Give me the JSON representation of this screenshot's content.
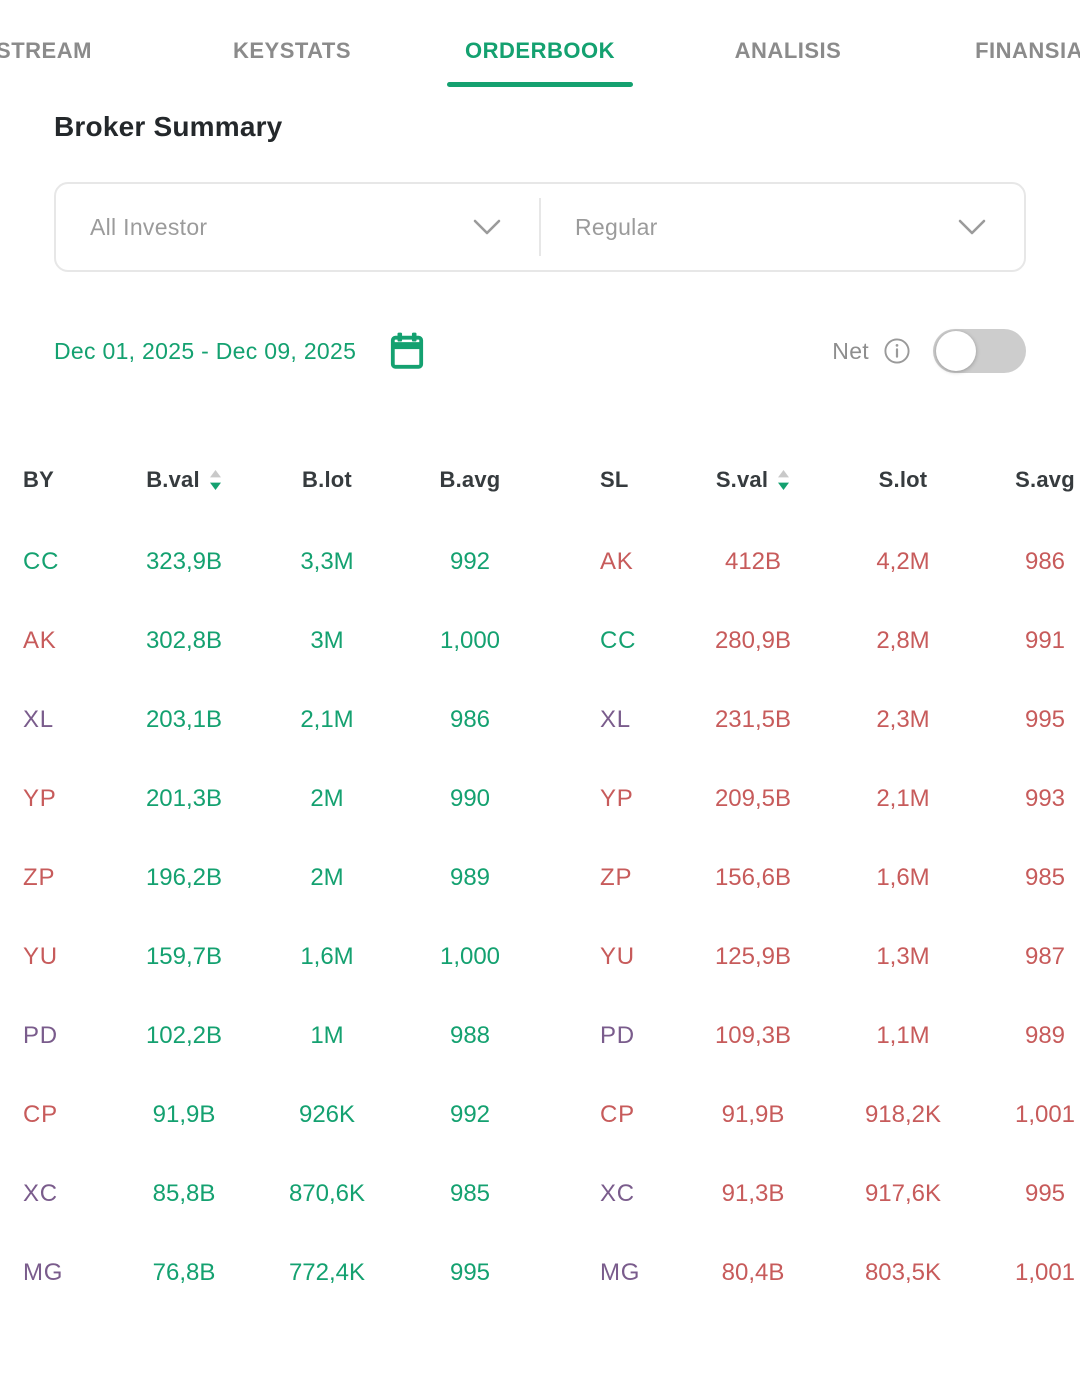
{
  "tab_bar": {
    "tabs": [
      {
        "label": "STREAM",
        "active": false
      },
      {
        "label": "KEYSTATS",
        "active": false
      },
      {
        "label": "ORDERBOOK",
        "active": true
      },
      {
        "label": "ANALISIS",
        "active": false
      },
      {
        "label": "FINANSIAL",
        "active": false
      }
    ]
  },
  "header": {
    "title": "Broker Summary"
  },
  "filters": {
    "investor_label": "All Investor",
    "board_label": "Regular"
  },
  "date_picker": {
    "range": "Dec 01, 2025 - Dec 09, 2025"
  },
  "net": {
    "label": "Net",
    "toggle_state": "off"
  },
  "table": {
    "columns": [
      {
        "label": "BY",
        "sortable": false
      },
      {
        "label": "B.val",
        "sortable": true
      },
      {
        "label": "B.lot",
        "sortable": false
      },
      {
        "label": "B.avg",
        "sortable": false
      },
      {
        "label": "SL",
        "sortable": false
      },
      {
        "label": "S.val",
        "sortable": true
      },
      {
        "label": "S.lot",
        "sortable": false
      },
      {
        "label": "S.avg",
        "sortable": false
      }
    ],
    "rows": [
      {
        "buy": {
          "code": "CC",
          "color": "green",
          "val": "323,9B",
          "lot": "3,3M",
          "avg": "992"
        },
        "sell": {
          "code": "AK",
          "color": "red",
          "val": "412B",
          "lot": "4,2M",
          "avg": "986"
        }
      },
      {
        "buy": {
          "code": "AK",
          "color": "red",
          "val": "302,8B",
          "lot": "3M",
          "avg": "1,000"
        },
        "sell": {
          "code": "CC",
          "color": "green",
          "val": "280,9B",
          "lot": "2,8M",
          "avg": "991"
        }
      },
      {
        "buy": {
          "code": "XL",
          "color": "purple",
          "val": "203,1B",
          "lot": "2,1M",
          "avg": "986"
        },
        "sell": {
          "code": "XL",
          "color": "purple",
          "val": "231,5B",
          "lot": "2,3M",
          "avg": "995"
        }
      },
      {
        "buy": {
          "code": "YP",
          "color": "red",
          "val": "201,3B",
          "lot": "2M",
          "avg": "990"
        },
        "sell": {
          "code": "YP",
          "color": "red",
          "val": "209,5B",
          "lot": "2,1M",
          "avg": "993"
        }
      },
      {
        "buy": {
          "code": "ZP",
          "color": "red",
          "val": "196,2B",
          "lot": "2M",
          "avg": "989"
        },
        "sell": {
          "code": "ZP",
          "color": "red",
          "val": "156,6B",
          "lot": "1,6M",
          "avg": "985"
        }
      },
      {
        "buy": {
          "code": "YU",
          "color": "red",
          "val": "159,7B",
          "lot": "1,6M",
          "avg": "1,000"
        },
        "sell": {
          "code": "YU",
          "color": "red",
          "val": "125,9B",
          "lot": "1,3M",
          "avg": "987"
        }
      },
      {
        "buy": {
          "code": "PD",
          "color": "purple",
          "val": "102,2B",
          "lot": "1M",
          "avg": "988"
        },
        "sell": {
          "code": "PD",
          "color": "purple",
          "val": "109,3B",
          "lot": "1,1M",
          "avg": "989"
        }
      },
      {
        "buy": {
          "code": "CP",
          "color": "red",
          "val": "91,9B",
          "lot": "926K",
          "avg": "992"
        },
        "sell": {
          "code": "CP",
          "color": "red",
          "val": "91,9B",
          "lot": "918,2K",
          "avg": "1,001"
        }
      },
      {
        "buy": {
          "code": "XC",
          "color": "purple",
          "val": "85,8B",
          "lot": "870,6K",
          "avg": "985"
        },
        "sell": {
          "code": "XC",
          "color": "purple",
          "val": "91,3B",
          "lot": "917,6K",
          "avg": "995"
        }
      },
      {
        "buy": {
          "code": "MG",
          "color": "purple",
          "val": "76,8B",
          "lot": "772,4K",
          "avg": "995"
        },
        "sell": {
          "code": "MG",
          "color": "purple",
          "val": "80,4B",
          "lot": "803,5K",
          "avg": "1,001"
        }
      }
    ]
  },
  "colors": {
    "accent_green": "#14A170",
    "sell_red": "#C75B5B",
    "broker_purple": "#7A5C8C",
    "inactive_tab": "#8B8B8B",
    "title_text": "#24282B",
    "muted_text": "#9B9B9B",
    "toggle_track": "#CDCDCD"
  },
  "icons": {
    "dropdown": "chevron-down-icon",
    "date": "calendar-icon",
    "net_info": "info-circle-icon",
    "sort": "sort-arrows-icon",
    "net_switch": "toggle-off"
  }
}
